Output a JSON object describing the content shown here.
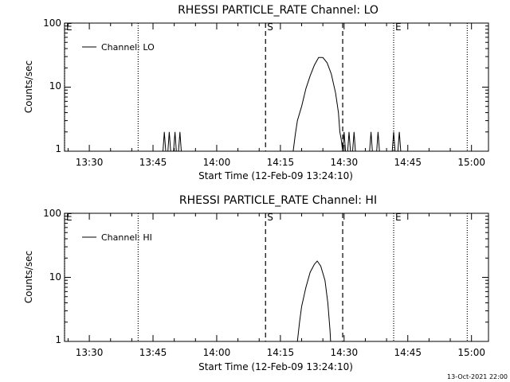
{
  "footer": {
    "timestamp": "13-Oct-2021 22:00"
  },
  "chart_data": [
    {
      "type": "line",
      "title": "RHESSI PARTICLE_RATE Channel: LO",
      "xlabel": "Start Time (12-Feb-09 13:24:10)",
      "ylabel": "Counts/sec",
      "yscale": "log",
      "ylim": [
        1,
        100
      ],
      "xlim": [
        "13:24:10",
        "15:04:00"
      ],
      "y_ticks": [
        {
          "value": 1,
          "label": "1"
        },
        {
          "value": 10,
          "label": "10"
        },
        {
          "value": 100,
          "label": "100"
        }
      ],
      "x_ticks": [
        {
          "time": "13:30",
          "label": "13:30"
        },
        {
          "time": "13:45",
          "label": "13:45"
        },
        {
          "time": "14:00",
          "label": "14:00"
        },
        {
          "time": "14:15",
          "label": "14:15"
        },
        {
          "time": "14:30",
          "label": "14:30"
        },
        {
          "time": "14:45",
          "label": "14:45"
        },
        {
          "time": "15:00",
          "label": "15:00"
        }
      ],
      "legend": {
        "position": "top-left",
        "label": "Channel: LO"
      },
      "markers": [
        {
          "time": "13:24:10",
          "style": "dotted",
          "label": "E"
        },
        {
          "time": "13:41:30",
          "style": "dotted",
          "label": ""
        },
        {
          "time": "14:11:30",
          "style": "dashed",
          "label": "S"
        },
        {
          "time": "14:29:40",
          "style": "dashed",
          "label": ""
        },
        {
          "time": "14:41:40",
          "style": "dotted",
          "label": "E"
        },
        {
          "time": "14:59:00",
          "style": "dotted",
          "label": ""
        }
      ],
      "series": [
        {
          "name": "Channel: LO",
          "points": [
            [
              "13:24:10",
              1
            ],
            [
              "13:47:20",
              1
            ],
            [
              "13:47:40",
              2
            ],
            [
              "13:48:00",
              1
            ],
            [
              "13:48:30",
              1
            ],
            [
              "13:48:50",
              2
            ],
            [
              "13:49:10",
              1
            ],
            [
              "13:49:50",
              1
            ],
            [
              "13:50:10",
              2
            ],
            [
              "13:50:30",
              1
            ],
            [
              "13:51:00",
              1
            ],
            [
              "13:51:20",
              2
            ],
            [
              "13:51:40",
              1
            ],
            [
              "14:11:30",
              1
            ],
            [
              "14:18:00",
              1
            ],
            [
              "14:18:30",
              1.8
            ],
            [
              "14:19:00",
              3
            ],
            [
              "14:20:00",
              5
            ],
            [
              "14:21:00",
              9.5
            ],
            [
              "14:22:00",
              15
            ],
            [
              "14:23:00",
              22
            ],
            [
              "14:24:00",
              29
            ],
            [
              "14:25:00",
              29
            ],
            [
              "14:26:00",
              24
            ],
            [
              "14:27:00",
              16
            ],
            [
              "14:28:00",
              8
            ],
            [
              "14:28:40",
              4
            ],
            [
              "14:29:00",
              2
            ],
            [
              "14:29:20",
              1.5
            ],
            [
              "14:29:40",
              1
            ],
            [
              "14:30:00",
              2
            ],
            [
              "14:30:20",
              1
            ],
            [
              "14:30:50",
              1
            ],
            [
              "14:31:10",
              2
            ],
            [
              "14:31:30",
              1
            ],
            [
              "14:32:00",
              1
            ],
            [
              "14:32:20",
              2
            ],
            [
              "14:32:40",
              1
            ],
            [
              "14:36:00",
              1
            ],
            [
              "14:36:20",
              2
            ],
            [
              "14:36:40",
              1
            ],
            [
              "14:37:40",
              1
            ],
            [
              "14:38:00",
              2
            ],
            [
              "14:38:20",
              1
            ],
            [
              "14:41:20",
              1
            ],
            [
              "14:41:40",
              2
            ],
            [
              "14:42:00",
              1
            ],
            [
              "14:42:40",
              1
            ],
            [
              "14:43:00",
              2
            ],
            [
              "14:43:20",
              1
            ],
            [
              "14:44:00",
              1
            ]
          ]
        }
      ]
    },
    {
      "type": "line",
      "title": "RHESSI PARTICLE_RATE Channel: HI",
      "xlabel": "Start Time (12-Feb-09 13:24:10)",
      "ylabel": "Counts/sec",
      "yscale": "log",
      "ylim": [
        1,
        100
      ],
      "xlim": [
        "13:24:10",
        "15:04:00"
      ],
      "y_ticks": [
        {
          "value": 1,
          "label": "1"
        },
        {
          "value": 10,
          "label": "10"
        },
        {
          "value": 100,
          "label": "100"
        }
      ],
      "x_ticks": [
        {
          "time": "13:30",
          "label": "13:30"
        },
        {
          "time": "13:45",
          "label": "13:45"
        },
        {
          "time": "14:00",
          "label": "14:00"
        },
        {
          "time": "14:15",
          "label": "14:15"
        },
        {
          "time": "14:30",
          "label": "14:30"
        },
        {
          "time": "14:45",
          "label": "14:45"
        },
        {
          "time": "15:00",
          "label": "15:00"
        }
      ],
      "legend": {
        "position": "top-left",
        "label": "Channel: HI"
      },
      "markers": [
        {
          "time": "13:24:10",
          "style": "dotted",
          "label": "E"
        },
        {
          "time": "13:41:30",
          "style": "dotted",
          "label": ""
        },
        {
          "time": "14:11:30",
          "style": "dashed",
          "label": "S"
        },
        {
          "time": "14:29:40",
          "style": "dashed",
          "label": ""
        },
        {
          "time": "14:41:40",
          "style": "dotted",
          "label": "E"
        },
        {
          "time": "14:59:00",
          "style": "dotted",
          "label": ""
        }
      ],
      "series": [
        {
          "name": "Channel: HI",
          "points": [
            [
              "14:19:00",
              1
            ],
            [
              "14:19:30",
              2
            ],
            [
              "14:20:00",
              3.5
            ],
            [
              "14:21:00",
              7
            ],
            [
              "14:22:00",
              12
            ],
            [
              "14:23:00",
              16
            ],
            [
              "14:23:40",
              18
            ],
            [
              "14:24:30",
              15
            ],
            [
              "14:25:30",
              9
            ],
            [
              "14:26:10",
              4
            ],
            [
              "14:26:40",
              1.5
            ],
            [
              "14:26:50",
              1
            ]
          ]
        }
      ]
    }
  ]
}
